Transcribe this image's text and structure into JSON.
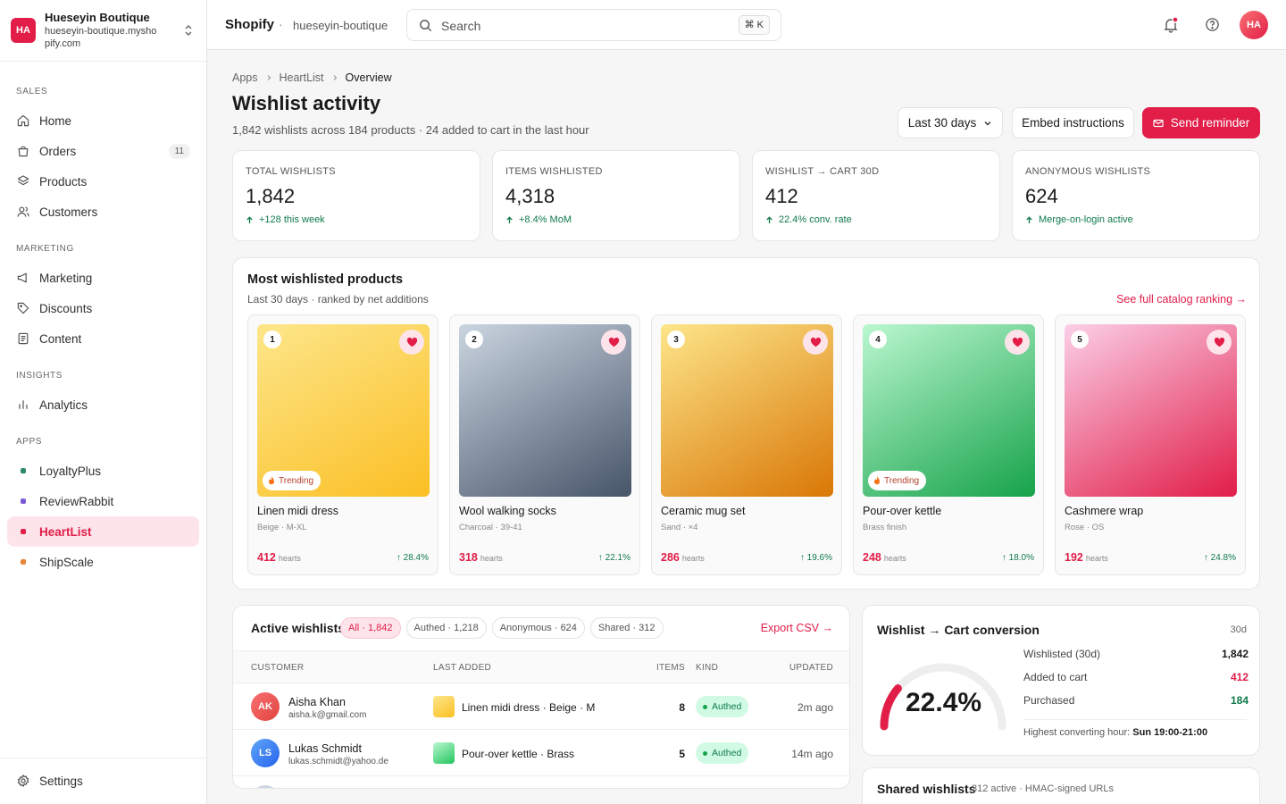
{
  "store": {
    "initials": "HA",
    "name": "Hueseyin Boutique",
    "domain": "hueseyin-boutique.myshopify.com"
  },
  "nav": [
    {
      "heading": "SALES",
      "items": [
        {
          "label": "Home"
        },
        {
          "label": "Orders",
          "badge": "11"
        },
        {
          "label": "Products"
        },
        {
          "label": "Customers"
        }
      ]
    },
    {
      "heading": "MARKETING",
      "items": [
        {
          "label": "Marketing"
        },
        {
          "label": "Discounts"
        },
        {
          "label": "Content"
        }
      ]
    },
    {
      "heading": "INSIGHTS",
      "items": [
        {
          "label": "Analytics"
        }
      ]
    },
    {
      "heading": "APPS",
      "items": [
        {
          "label": "LoyaltyPlus"
        },
        {
          "label": "ReviewRabbit"
        },
        {
          "label": "HeartList"
        },
        {
          "label": "ShipScale"
        }
      ]
    }
  ],
  "settings": "Settings",
  "topbar": {
    "brand": "Shopify",
    "separator": "·",
    "store": "hueseyin-boutique",
    "search": "Search",
    "shortcut": "⌘ K",
    "avatar": "HA"
  },
  "breadcrumb": [
    "Apps",
    "HeartList",
    "Overview"
  ],
  "header": {
    "title": "Wishlist activity",
    "subtitle": "1,842 wishlists across 184 products · 24 added to cart in the last hour",
    "range": "Last 30 days",
    "embed": "Embed instructions",
    "send": "Send reminder"
  },
  "kpis": [
    {
      "label": "TOTAL WISHLISTS",
      "value": "1,842",
      "delta": "+128 this week"
    },
    {
      "label": "ITEMS WISHLISTED",
      "value": "4,318",
      "delta": "+8.4% MoM"
    },
    {
      "label": "WISHLIST → CART 30D",
      "value": "412",
      "delta": "22.4% conv. rate"
    },
    {
      "label": "ANONYMOUS WISHLISTS",
      "value": "624",
      "delta": "Merge-on-login active"
    }
  ],
  "products": {
    "title": "Most wishlisted products",
    "subtitle": "Last 30 days · ranked by net additions",
    "link": "See full catalog ranking →",
    "items": [
      {
        "rank": 1,
        "name": "Linen midi dress",
        "variant": "Beige · M-XL",
        "hearts": "412",
        "unit": "hearts",
        "growth": "↑ 28.4%",
        "badge": "Trending"
      },
      {
        "rank": 2,
        "name": "Wool walking socks",
        "variant": "Charcoal · 39-41",
        "hearts": "318",
        "unit": "hearts",
        "growth": "↑ 22.1%"
      },
      {
        "rank": 3,
        "name": "Ceramic mug set",
        "variant": "Sand · ×4",
        "hearts": "286",
        "unit": "hearts",
        "growth": "↑ 19.6%"
      },
      {
        "rank": 4,
        "name": "Pour-over kettle",
        "variant": "Brass finish",
        "hearts": "248",
        "unit": "hearts",
        "growth": "↑ 18.0%",
        "badge": "Trending"
      },
      {
        "rank": 5,
        "name": "Cashmere wrap",
        "variant": "Rose · OS",
        "hearts": "192",
        "unit": "hearts",
        "growth": "↑ 24.8%"
      }
    ]
  },
  "wishlists": {
    "title": "Active wishlists",
    "filters": [
      "All · 1,842",
      "Authed · 1,218",
      "Anonymous · 624",
      "Shared · 312"
    ],
    "export": "Export CSV →",
    "columns": [
      "CUSTOMER",
      "LAST ADDED",
      "ITEMS",
      "KIND",
      "UPDATED"
    ],
    "rows": [
      {
        "initials": "AK",
        "name": "Aisha Khan",
        "email": "aisha.k@gmail.com",
        "product": "Linen midi dress · Beige · M",
        "items": "8",
        "kind": "Authed",
        "updated": "2m ago"
      },
      {
        "initials": "LS",
        "name": "Lukas Schmidt",
        "email": "lukas.schmidt@yahoo.de",
        "product": "Pour-over kettle · Brass",
        "items": "5",
        "kind": "Authed",
        "updated": "14m ago"
      }
    ]
  },
  "conversion": {
    "title": "Wishlist → Cart conversion",
    "period": "30d",
    "rate": "22.4%",
    "stats": [
      {
        "label": "Wishlisted (30d)",
        "value": "1,842"
      },
      {
        "label": "Added to cart",
        "value": "412"
      },
      {
        "label": "Purchased",
        "value": "184"
      }
    ],
    "note": "Highest converting hour:",
    "note_value": "Sun 19:00-21:00"
  },
  "shared": {
    "title": "Shared wishlists",
    "subtitle": "312 active · HMAC-signed URLs"
  }
}
